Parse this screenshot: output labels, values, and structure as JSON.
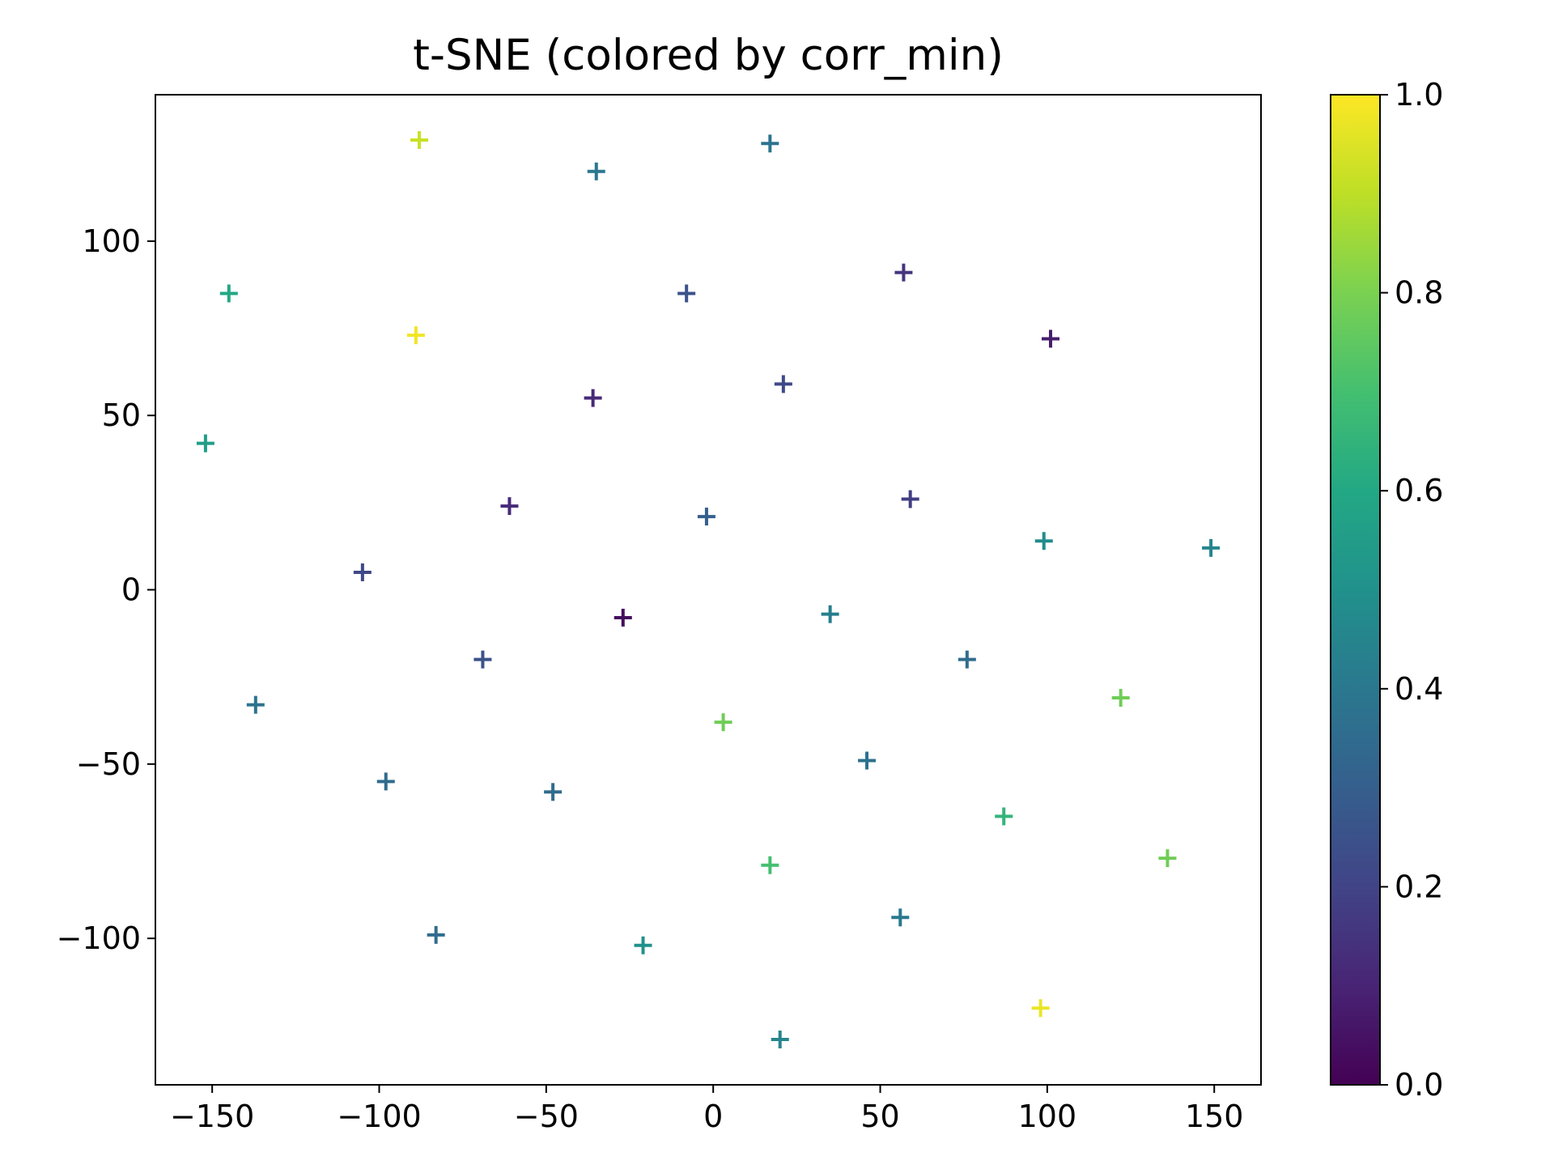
{
  "chart_data": {
    "type": "scatter",
    "title": "t-SNE (colored by corr_min)",
    "xlabel": "",
    "ylabel": "",
    "xlim": [
      -167,
      164
    ],
    "ylim": [
      -142,
      142
    ],
    "x_ticks": [
      -150,
      -100,
      -50,
      0,
      50,
      100,
      150
    ],
    "y_ticks": [
      -100,
      -50,
      0,
      50,
      100
    ],
    "x_tick_labels": [
      "−150",
      "−100",
      "−50",
      "0",
      "50",
      "100",
      "150"
    ],
    "y_tick_labels": [
      "−100",
      "−50",
      "0",
      "50",
      "100"
    ],
    "marker": "plus",
    "grid": false,
    "colormap": "viridis",
    "colorbar": {
      "label": "",
      "range": [
        0.0,
        1.0
      ],
      "ticks": [
        0.0,
        0.2,
        0.4,
        0.6,
        0.8,
        1.0
      ],
      "tick_labels": [
        "0.0",
        "0.2",
        "0.4",
        "0.6",
        "0.8",
        "1.0"
      ]
    },
    "points": [
      {
        "x": -88,
        "y": 129,
        "c": 0.92
      },
      {
        "x": -35,
        "y": 120,
        "c": 0.4
      },
      {
        "x": 17,
        "y": 128,
        "c": 0.38
      },
      {
        "x": -145,
        "y": 85,
        "c": 0.6
      },
      {
        "x": -8,
        "y": 85,
        "c": 0.25
      },
      {
        "x": 57,
        "y": 91,
        "c": 0.15
      },
      {
        "x": -89,
        "y": 73,
        "c": 0.98
      },
      {
        "x": 101,
        "y": 72,
        "c": 0.08
      },
      {
        "x": -36,
        "y": 55,
        "c": 0.12
      },
      {
        "x": 21,
        "y": 59,
        "c": 0.22
      },
      {
        "x": -152,
        "y": 42,
        "c": 0.55
      },
      {
        "x": -61,
        "y": 24,
        "c": 0.12
      },
      {
        "x": 59,
        "y": 26,
        "c": 0.18
      },
      {
        "x": -2,
        "y": 21,
        "c": 0.3
      },
      {
        "x": 99,
        "y": 14,
        "c": 0.48
      },
      {
        "x": 149,
        "y": 12,
        "c": 0.45
      },
      {
        "x": -105,
        "y": 5,
        "c": 0.22
      },
      {
        "x": -27,
        "y": -8,
        "c": 0.03
      },
      {
        "x": 35,
        "y": -7,
        "c": 0.42
      },
      {
        "x": -69,
        "y": -20,
        "c": 0.25
      },
      {
        "x": 76,
        "y": -20,
        "c": 0.35
      },
      {
        "x": -137,
        "y": -33,
        "c": 0.38
      },
      {
        "x": 3,
        "y": -38,
        "c": 0.78
      },
      {
        "x": 122,
        "y": -31,
        "c": 0.78
      },
      {
        "x": -98,
        "y": -55,
        "c": 0.35
      },
      {
        "x": -48,
        "y": -58,
        "c": 0.35
      },
      {
        "x": 46,
        "y": -49,
        "c": 0.37
      },
      {
        "x": 87,
        "y": -65,
        "c": 0.65
      },
      {
        "x": 17,
        "y": -79,
        "c": 0.7
      },
      {
        "x": 136,
        "y": -77,
        "c": 0.78
      },
      {
        "x": -83,
        "y": -99,
        "c": 0.35
      },
      {
        "x": -21,
        "y": -102,
        "c": 0.5
      },
      {
        "x": 56,
        "y": -94,
        "c": 0.4
      },
      {
        "x": 98,
        "y": -120,
        "c": 0.97
      },
      {
        "x": 20,
        "y": -129,
        "c": 0.45
      }
    ]
  }
}
